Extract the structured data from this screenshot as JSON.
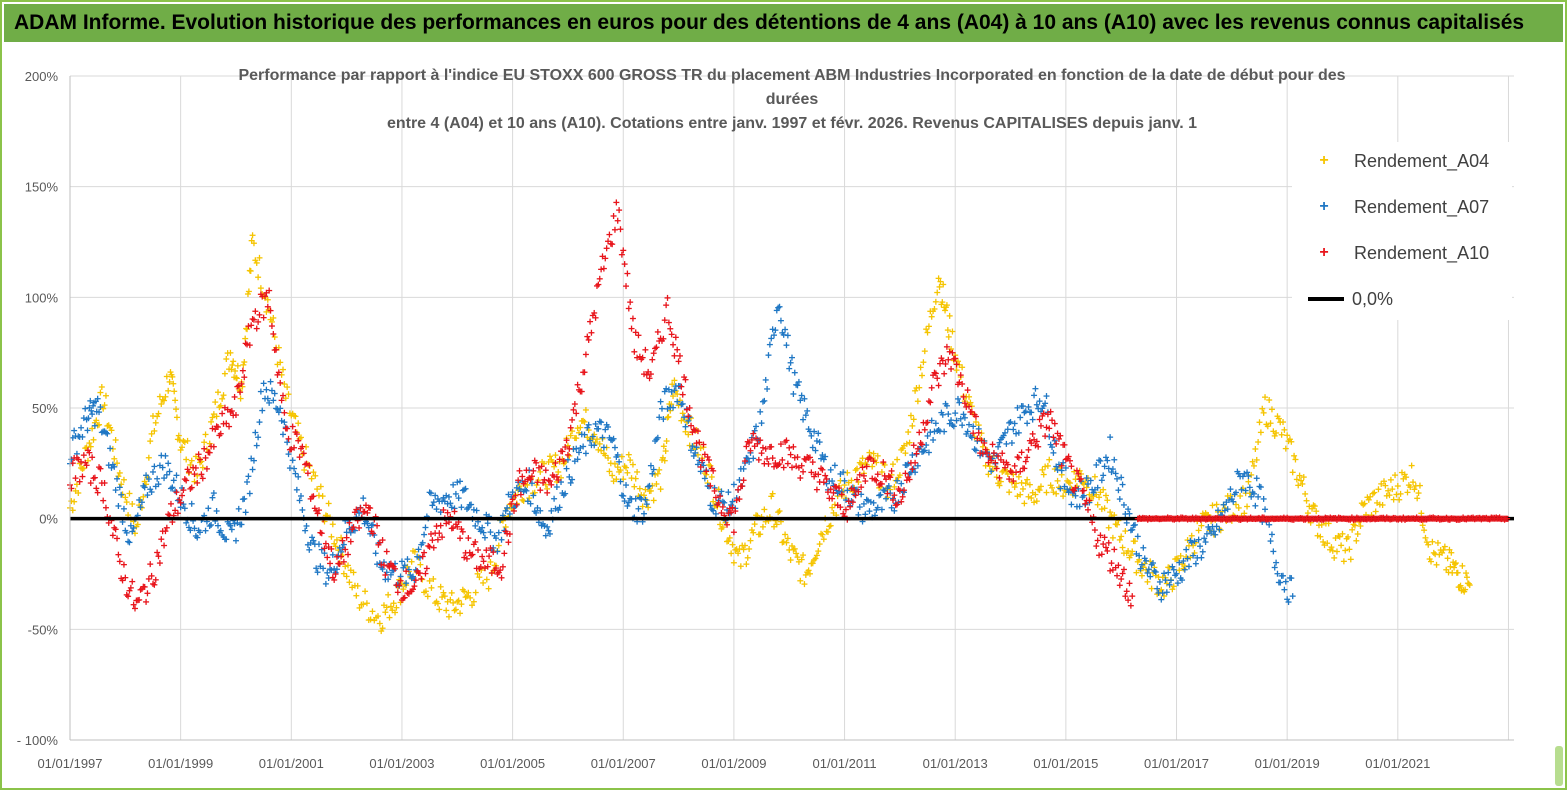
{
  "banner": {
    "title": "ADAM Informe. Evolution historique des performances en euros pour des détentions de 4 ans (A04) à 10 ans (A10) avec les revenus connus capitalisés"
  },
  "chart_data": {
    "type": "scatter",
    "title_lines": [
      "Performance par rapport à l'indice EU STOXX 600 GROSS TR  du placement ABM Industries Incorporated en fonction de la date de début pour des",
      "durées",
      "entre 4 (A04) et 10 ans (A10).  Cotations entre janv. 1997 et févr.  2026. Revenus CAPITALISES depuis janv. 1"
    ],
    "xlabel": "",
    "ylabel": "",
    "x_range": [
      "01/01/1997",
      "01/01/2023"
    ],
    "ylim": [
      -100,
      200
    ],
    "y_ticks": [
      "200%",
      "150%",
      "100%",
      "50%",
      "0%",
      "-50%",
      "- 100%"
    ],
    "x_ticks": [
      "01/01/1997",
      "01/01/1999",
      "01/01/2001",
      "01/01/2003",
      "01/01/2005",
      "01/01/2007",
      "01/01/2009",
      "01/01/2011",
      "01/01/2013",
      "01/01/2015",
      "01/01/2017",
      "01/01/2019",
      "01/01/2021"
    ],
    "grid": "horizontal",
    "legend_position": "top-right",
    "legend": [
      {
        "label": "Rendement_A04",
        "marker": "+",
        "color": "#f5c400"
      },
      {
        "label": "Rendement_A07",
        "marker": "+",
        "color": "#1f77c4"
      },
      {
        "label": "Rendement_A10",
        "marker": "+",
        "color": "#e8141b"
      },
      {
        "label": "0,0%",
        "marker": "line",
        "color": "#000000"
      }
    ],
    "series": [
      {
        "name": "Rendement_A04",
        "color": "#f5c400",
        "x": [
          1997.0,
          1997.3,
          1997.6,
          1997.9,
          1998.2,
          1998.5,
          1998.8,
          1999.0,
          1999.3,
          1999.6,
          1999.9,
          2000.1,
          2000.3,
          2000.6,
          2000.9,
          2001.2,
          2001.6,
          2001.9,
          2002.2,
          2002.6,
          2002.9,
          2003.2,
          2003.6,
          2003.9,
          2004.2,
          2004.6,
          2004.9,
          2005.2,
          2005.6,
          2005.9,
          2006.2,
          2006.5,
          2006.8,
          2007.1,
          2007.4,
          2007.7,
          2007.9,
          2008.2,
          2008.5,
          2008.8,
          2009.1,
          2009.4,
          2009.7,
          2010.0,
          2010.3,
          2010.6,
          2010.9,
          2011.2,
          2011.5,
          2011.8,
          2012.1,
          2012.4,
          2012.7,
          2012.9,
          2013.2,
          2013.5,
          2013.8,
          2014.1,
          2014.4,
          2014.7,
          2015.0,
          2015.3,
          2015.6,
          2015.9,
          2016.2,
          2016.5,
          2016.8,
          2017.1,
          2017.4,
          2017.7,
          2018.0,
          2018.3,
          2018.6,
          2018.9,
          2019.2,
          2019.5,
          2019.8,
          2020.1,
          2020.4,
          2020.7,
          2021.0,
          2021.3,
          2021.6,
          2021.9,
          2022.1,
          2022.3
        ],
        "y": [
          5,
          30,
          55,
          20,
          -5,
          40,
          65,
          35,
          20,
          45,
          75,
          60,
          125,
          95,
          55,
          30,
          5,
          -15,
          -35,
          -45,
          -35,
          -20,
          -35,
          -40,
          -35,
          -25,
          5,
          15,
          20,
          25,
          45,
          40,
          20,
          25,
          10,
          20,
          60,
          40,
          25,
          0,
          -20,
          -5,
          5,
          -15,
          -25,
          -5,
          10,
          20,
          25,
          15,
          30,
          70,
          110,
          85,
          55,
          30,
          20,
          15,
          10,
          20,
          15,
          20,
          10,
          -5,
          -15,
          -25,
          -30,
          -20,
          -5,
          0,
          5,
          10,
          50,
          40,
          20,
          0,
          -10,
          -15,
          5,
          10,
          15,
          20,
          -15,
          -20,
          -25,
          -30
        ]
      },
      {
        "name": "Rendement_A07",
        "color": "#1f77c4",
        "x": [
          1997.0,
          1997.3,
          1997.5,
          1997.8,
          1998.1,
          1998.4,
          1998.7,
          1999.0,
          1999.3,
          1999.6,
          1999.9,
          2000.2,
          2000.5,
          2000.8,
          2001.1,
          2001.4,
          2001.7,
          2002.0,
          2002.3,
          2002.6,
          2002.9,
          2003.2,
          2003.5,
          2003.8,
          2004.1,
          2004.4,
          2004.7,
          2005.0,
          2005.3,
          2005.6,
          2005.9,
          2006.2,
          2006.5,
          2006.8,
          2007.1,
          2007.4,
          2007.7,
          2008.0,
          2008.3,
          2008.6,
          2008.9,
          2009.2,
          2009.5,
          2009.8,
          2010.1,
          2010.4,
          2010.7,
          2011.0,
          2011.3,
          2011.6,
          2011.9,
          2012.2,
          2012.5,
          2012.8,
          2013.1,
          2013.4,
          2013.7,
          2014.0,
          2014.3,
          2014.6,
          2014.9,
          2015.2,
          2015.5,
          2015.8,
          2016.1,
          2016.4,
          2016.7,
          2017.0,
          2017.3,
          2017.6,
          2017.9,
          2018.2,
          2018.5,
          2018.8,
          2019.1
        ],
        "y": [
          30,
          45,
          50,
          20,
          -10,
          15,
          25,
          10,
          -5,
          5,
          -10,
          10,
          60,
          50,
          15,
          -15,
          -25,
          -5,
          5,
          -20,
          -25,
          -25,
          5,
          10,
          10,
          0,
          -10,
          10,
          15,
          -5,
          15,
          30,
          40,
          35,
          5,
          5,
          50,
          60,
          30,
          10,
          5,
          20,
          45,
          100,
          60,
          40,
          20,
          15,
          5,
          5,
          10,
          25,
          35,
          45,
          50,
          35,
          25,
          40,
          50,
          55,
          20,
          10,
          15,
          30,
          5,
          -20,
          -30,
          -25,
          -15,
          -10,
          5,
          20,
          10,
          -20,
          -35
        ]
      },
      {
        "name": "Rendement_A10",
        "color": "#e8141b",
        "x": [
          1997.0,
          1997.3,
          1997.6,
          1997.9,
          1998.2,
          1998.5,
          1998.8,
          1999.1,
          1999.4,
          1999.7,
          2000.0,
          2000.3,
          2000.6,
          2000.9,
          2001.2,
          2001.5,
          2001.8,
          2002.1,
          2002.4,
          2002.7,
          2003.0,
          2003.3,
          2003.6,
          2003.9,
          2004.2,
          2004.5,
          2004.8,
          2005.1,
          2005.4,
          2005.7,
          2006.0,
          2006.3,
          2006.6,
          2006.9,
          2007.2,
          2007.5,
          2007.8,
          2008.1,
          2008.4,
          2008.7,
          2009.0,
          2009.3,
          2009.6,
          2009.9,
          2010.2,
          2010.5,
          2010.8,
          2011.1,
          2011.4,
          2011.7,
          2012.0,
          2012.3,
          2012.6,
          2012.9,
          2013.2,
          2013.5,
          2013.8,
          2014.1,
          2014.4,
          2014.7,
          2015.0,
          2015.3,
          2015.6,
          2015.9,
          2016.2
        ],
        "y": [
          20,
          25,
          15,
          -20,
          -40,
          -25,
          0,
          15,
          25,
          40,
          50,
          90,
          100,
          40,
          30,
          0,
          -25,
          -5,
          5,
          -20,
          -30,
          -30,
          -5,
          0,
          -15,
          -20,
          -20,
          15,
          20,
          15,
          35,
          70,
          110,
          140,
          80,
          65,
          95,
          60,
          30,
          10,
          0,
          35,
          30,
          30,
          25,
          20,
          10,
          5,
          25,
          20,
          10,
          30,
          60,
          75,
          55,
          30,
          25,
          20,
          35,
          45,
          25,
          10,
          -10,
          -20,
          -35
        ]
      },
      {
        "name": "Rendement_A10 (flat)",
        "color": "#e8141b",
        "x_start": 2016.3,
        "x_end": 2023.0,
        "y": 0
      }
    ],
    "baseline": {
      "label": "0,0%",
      "value": 0,
      "color": "#000000"
    }
  }
}
